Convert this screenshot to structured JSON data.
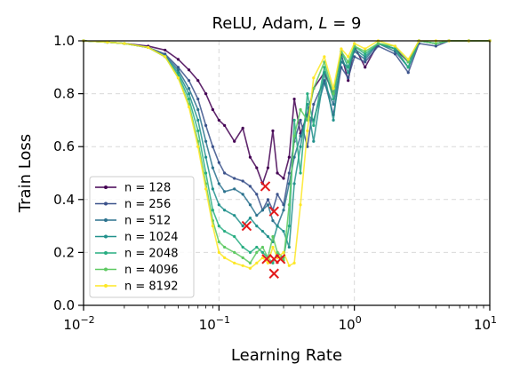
{
  "chart_data": {
    "type": "line",
    "title": "ReLU, Adam, L = 9",
    "title_parts": {
      "prefix": "ReLU, Adam, ",
      "var": "L",
      "suffix": " = 9"
    },
    "xlabel": "Learning Rate",
    "ylabel": "Train Loss",
    "xscale": "log",
    "xlim": [
      0.01,
      10
    ],
    "ylim": [
      0.0,
      1.0
    ],
    "x_ticks": [
      {
        "value": 0.01,
        "base": "10",
        "exp": "−2"
      },
      {
        "value": 0.1,
        "base": "10",
        "exp": "−1"
      },
      {
        "value": 1,
        "base": "10",
        "exp": "0"
      },
      {
        "value": 10,
        "base": "10",
        "exp": "1"
      }
    ],
    "y_ticks": [
      {
        "value": 0.0,
        "label": "0.0"
      },
      {
        "value": 0.2,
        "label": "0.2"
      },
      {
        "value": 0.4,
        "label": "0.4"
      },
      {
        "value": 0.6,
        "label": "0.6"
      },
      {
        "value": 0.8,
        "label": "0.8"
      },
      {
        "value": 1.0,
        "label": "1.0"
      }
    ],
    "grid": true,
    "legend_position": "lower-left",
    "series": [
      {
        "name": "n = 128",
        "color": "#440154",
        "x": [
          0.01,
          0.015,
          0.02,
          0.03,
          0.04,
          0.05,
          0.06,
          0.07,
          0.08,
          0.09,
          0.1,
          0.11,
          0.13,
          0.15,
          0.17,
          0.19,
          0.21,
          0.23,
          0.25,
          0.27,
          0.3,
          0.33,
          0.36,
          0.4,
          0.45,
          0.5,
          0.6,
          0.7,
          0.8,
          0.9,
          1.0,
          1.2,
          1.5,
          2.0,
          2.5,
          3.0,
          4.0,
          5.0,
          7.0,
          10.0
        ],
        "y": [
          1.0,
          0.995,
          0.99,
          0.98,
          0.965,
          0.93,
          0.89,
          0.85,
          0.8,
          0.74,
          0.7,
          0.68,
          0.62,
          0.67,
          0.56,
          0.52,
          0.46,
          0.52,
          0.66,
          0.5,
          0.48,
          0.56,
          0.78,
          0.65,
          0.72,
          0.82,
          0.88,
          0.8,
          0.95,
          0.85,
          0.98,
          0.9,
          0.99,
          0.97,
          0.92,
          1.0,
          0.99,
          1.0,
          1.0,
          1.0
        ]
      },
      {
        "name": "n = 256",
        "color": "#3b528b",
        "x": [
          0.01,
          0.015,
          0.02,
          0.03,
          0.04,
          0.05,
          0.06,
          0.07,
          0.08,
          0.09,
          0.1,
          0.11,
          0.13,
          0.15,
          0.17,
          0.19,
          0.21,
          0.23,
          0.25,
          0.27,
          0.3,
          0.33,
          0.36,
          0.4,
          0.45,
          0.5,
          0.6,
          0.7,
          0.8,
          0.9,
          1.0,
          1.2,
          1.5,
          2.0,
          2.5,
          3.0,
          4.0,
          5.0,
          7.0,
          10.0
        ],
        "y": [
          1.0,
          0.995,
          0.99,
          0.975,
          0.95,
          0.9,
          0.85,
          0.78,
          0.68,
          0.6,
          0.54,
          0.5,
          0.48,
          0.47,
          0.45,
          0.42,
          0.36,
          0.4,
          0.36,
          0.42,
          0.38,
          0.5,
          0.62,
          0.7,
          0.6,
          0.76,
          0.85,
          0.72,
          0.9,
          0.86,
          0.94,
          0.92,
          0.98,
          0.95,
          0.88,
          0.99,
          0.98,
          1.0,
          1.0,
          1.0
        ]
      },
      {
        "name": "n = 512",
        "color": "#2c728e",
        "x": [
          0.01,
          0.015,
          0.02,
          0.03,
          0.04,
          0.05,
          0.06,
          0.07,
          0.08,
          0.09,
          0.1,
          0.11,
          0.13,
          0.15,
          0.17,
          0.19,
          0.21,
          0.23,
          0.25,
          0.27,
          0.3,
          0.33,
          0.36,
          0.4,
          0.45,
          0.5,
          0.6,
          0.7,
          0.8,
          0.9,
          1.0,
          1.2,
          1.5,
          2.0,
          2.5,
          3.0,
          4.0,
          5.0,
          7.0,
          10.0
        ],
        "y": [
          1.0,
          0.995,
          0.99,
          0.975,
          0.945,
          0.89,
          0.82,
          0.74,
          0.62,
          0.52,
          0.46,
          0.43,
          0.44,
          0.42,
          0.38,
          0.34,
          0.36,
          0.38,
          0.32,
          0.3,
          0.36,
          0.46,
          0.56,
          0.64,
          0.72,
          0.7,
          0.84,
          0.76,
          0.92,
          0.9,
          0.96,
          0.93,
          0.99,
          0.96,
          0.9,
          1.0,
          0.99,
          1.0,
          1.0,
          1.0
        ]
      },
      {
        "name": "n = 1024",
        "color": "#21918c",
        "x": [
          0.01,
          0.015,
          0.02,
          0.03,
          0.04,
          0.05,
          0.06,
          0.07,
          0.08,
          0.09,
          0.1,
          0.11,
          0.13,
          0.15,
          0.17,
          0.19,
          0.21,
          0.23,
          0.25,
          0.27,
          0.3,
          0.33,
          0.36,
          0.4,
          0.45,
          0.5,
          0.6,
          0.7,
          0.8,
          0.9,
          1.0,
          1.2,
          1.5,
          2.0,
          2.5,
          3.0,
          4.0,
          5.0,
          7.0,
          10.0
        ],
        "y": [
          1.0,
          0.995,
          0.99,
          0.975,
          0.94,
          0.88,
          0.8,
          0.7,
          0.56,
          0.44,
          0.38,
          0.36,
          0.34,
          0.3,
          0.33,
          0.3,
          0.28,
          0.26,
          0.24,
          0.3,
          0.28,
          0.22,
          0.46,
          0.6,
          0.76,
          0.62,
          0.88,
          0.7,
          0.94,
          0.88,
          0.97,
          0.94,
          0.99,
          0.97,
          0.9,
          1.0,
          0.99,
          1.0,
          1.0,
          1.0
        ]
      },
      {
        "name": "n = 2048",
        "color": "#27ad81",
        "x": [
          0.01,
          0.015,
          0.02,
          0.03,
          0.04,
          0.05,
          0.06,
          0.07,
          0.08,
          0.09,
          0.1,
          0.11,
          0.13,
          0.15,
          0.17,
          0.19,
          0.21,
          0.23,
          0.25,
          0.27,
          0.3,
          0.33,
          0.36,
          0.4,
          0.45,
          0.5,
          0.6,
          0.7,
          0.8,
          0.9,
          1.0,
          1.2,
          1.5,
          2.0,
          2.5,
          3.0,
          4.0,
          5.0,
          7.0,
          10.0
        ],
        "y": [
          1.0,
          0.995,
          0.99,
          0.975,
          0.94,
          0.87,
          0.78,
          0.66,
          0.5,
          0.36,
          0.3,
          0.28,
          0.26,
          0.22,
          0.2,
          0.22,
          0.2,
          0.18,
          0.16,
          0.2,
          0.18,
          0.3,
          0.7,
          0.5,
          0.8,
          0.68,
          0.9,
          0.78,
          0.96,
          0.9,
          0.98,
          0.95,
          0.99,
          0.97,
          0.9,
          1.0,
          0.99,
          1.0,
          1.0,
          1.0
        ]
      },
      {
        "name": "n = 4096",
        "color": "#5ec962",
        "x": [
          0.01,
          0.015,
          0.02,
          0.03,
          0.04,
          0.05,
          0.06,
          0.07,
          0.08,
          0.09,
          0.1,
          0.11,
          0.13,
          0.15,
          0.17,
          0.19,
          0.21,
          0.23,
          0.25,
          0.27,
          0.3,
          0.33,
          0.36,
          0.4,
          0.45,
          0.5,
          0.6,
          0.7,
          0.8,
          0.9,
          1.0,
          1.2,
          1.5,
          2.0,
          2.5,
          3.0,
          4.0,
          5.0,
          7.0,
          10.0
        ],
        "y": [
          1.0,
          0.995,
          0.99,
          0.975,
          0.94,
          0.86,
          0.76,
          0.62,
          0.46,
          0.32,
          0.24,
          0.22,
          0.2,
          0.18,
          0.16,
          0.2,
          0.22,
          0.18,
          0.26,
          0.2,
          0.17,
          0.38,
          0.64,
          0.74,
          0.7,
          0.82,
          0.92,
          0.8,
          0.96,
          0.92,
          0.98,
          0.96,
          0.99,
          0.98,
          0.92,
          1.0,
          0.99,
          1.0,
          1.0,
          1.0
        ]
      },
      {
        "name": "n = 8192",
        "color": "#fde725",
        "x": [
          0.01,
          0.015,
          0.02,
          0.03,
          0.04,
          0.05,
          0.06,
          0.07,
          0.08,
          0.09,
          0.1,
          0.11,
          0.13,
          0.15,
          0.17,
          0.19,
          0.21,
          0.23,
          0.25,
          0.27,
          0.3,
          0.33,
          0.36,
          0.4,
          0.45,
          0.5,
          0.6,
          0.7,
          0.8,
          0.9,
          1.0,
          1.2,
          1.5,
          2.0,
          2.5,
          3.0,
          4.0,
          5.0,
          7.0,
          10.0
        ],
        "y": [
          1.0,
          0.995,
          0.99,
          0.975,
          0.94,
          0.86,
          0.75,
          0.6,
          0.44,
          0.3,
          0.2,
          0.18,
          0.16,
          0.15,
          0.14,
          0.16,
          0.18,
          0.16,
          0.22,
          0.18,
          0.2,
          0.15,
          0.16,
          0.38,
          0.66,
          0.86,
          0.94,
          0.82,
          0.97,
          0.94,
          0.99,
          0.97,
          1.0,
          0.98,
          0.93,
          1.0,
          1.0,
          1.0,
          1.0,
          1.0
        ]
      }
    ],
    "markers": [
      {
        "x": 0.22,
        "y": 0.45
      },
      {
        "x": 0.255,
        "y": 0.355
      },
      {
        "x": 0.16,
        "y": 0.3
      },
      {
        "x": 0.225,
        "y": 0.175
      },
      {
        "x": 0.255,
        "y": 0.175
      },
      {
        "x": 0.285,
        "y": 0.175
      },
      {
        "x": 0.255,
        "y": 0.12
      }
    ],
    "marker_color": "#e31a1c"
  }
}
